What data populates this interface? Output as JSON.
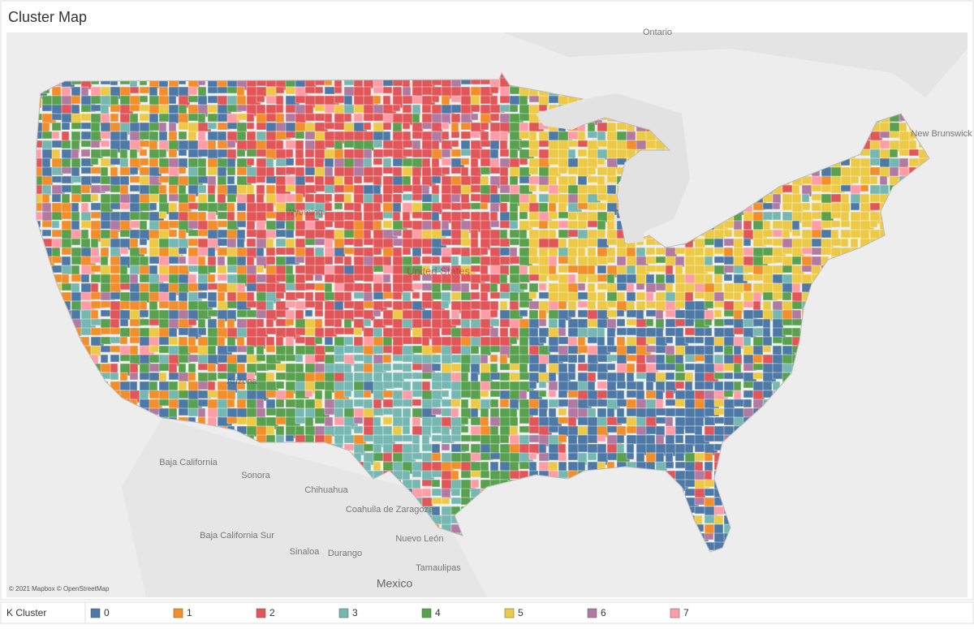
{
  "title": "Cluster Map",
  "map": {
    "labels": [
      "Ontario",
      "New Brunswick",
      "Wyoming",
      "United States",
      "Arizona",
      "Baja California",
      "Sonora",
      "Chihuahua",
      "Coahuila de Zaragoza",
      "Baja California Sur",
      "Nuevo León",
      "Sinaloa",
      "Durango",
      "Tamaulipas",
      "Mexico"
    ],
    "attribution": "© 2021 Mapbox © OpenStreetMap"
  },
  "legend": {
    "title": "K Cluster",
    "items": [
      {
        "label": "0",
        "color": "#4e79a7"
      },
      {
        "label": "1",
        "color": "#f28e2b"
      },
      {
        "label": "2",
        "color": "#e15759"
      },
      {
        "label": "3",
        "color": "#76b7b2"
      },
      {
        "label": "4",
        "color": "#59a14f"
      },
      {
        "label": "5",
        "color": "#edc948"
      },
      {
        "label": "6",
        "color": "#b07aa1"
      },
      {
        "label": "7",
        "color": "#ff9da7"
      }
    ]
  }
}
